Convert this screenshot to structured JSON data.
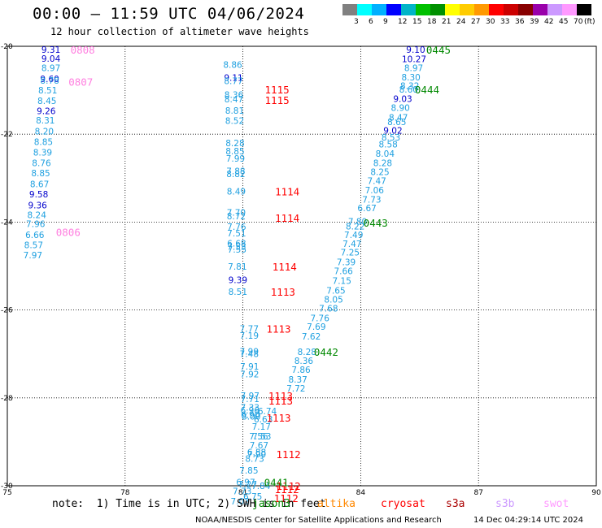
{
  "header": {
    "title": "00:00 – 11:59 UTC 04/06/2024",
    "subtitle": "12 hour collection of altimeter wave heights"
  },
  "colorbar": {
    "colors": [
      "#808080",
      "#00ffff",
      "#00b0ff",
      "#0000ff",
      "#00b4c8",
      "#00c000",
      "#009000",
      "#ffff00",
      "#ffcc00",
      "#ff9900",
      "#ff0000",
      "#cc0000",
      "#880000",
      "#9900aa",
      "#cc99ff",
      "#ff99ff",
      "#000000"
    ],
    "labels": [
      "3",
      "6",
      "9",
      "12",
      "15",
      "18",
      "21",
      "24",
      "27",
      "30",
      "33",
      "36",
      "39",
      "42",
      "45",
      "70"
    ],
    "unit": "(ft)"
  },
  "footer": {
    "note": "note:  1) Time is in UTC; 2) SWH is in feet",
    "legend": [
      {
        "name": "jason3",
        "color": "#008800"
      },
      {
        "name": "altika",
        "color": "#ff8800"
      },
      {
        "name": "cryosat",
        "color": "#ff0000"
      },
      {
        "name": "s3a",
        "color": "#aa0000"
      },
      {
        "name": "s3b",
        "color": "#cc99ff"
      },
      {
        "name": "swot",
        "color": "#ff99ff"
      }
    ],
    "credit": "NOAA/NESDIS Center for Satellite Applications and Research",
    "stamp": "14 Dec 04:29:14 UTC 2024"
  },
  "chart_data": {
    "type": "scatter",
    "xlim": [
      75,
      90
    ],
    "ylim": [
      -30,
      -20
    ],
    "x_ticks": [
      "75",
      "78",
      "81",
      "84",
      "87",
      "90"
    ],
    "y_ticks": [
      "-20",
      "-22",
      "-24",
      "-26",
      "-28",
      "-30"
    ],
    "grid": true,
    "colors": {
      "cyan": "#1fa0e0",
      "blue": "#0000cc",
      "red": "#ff0000",
      "green": "#008800",
      "pink": "#ff80e0"
    },
    "values": [
      {
        "x": 76.11,
        "y": -20.07,
        "text": "9.31",
        "c": "blue"
      },
      {
        "x": 76.11,
        "y": -20.28,
        "text": "9.04",
        "c": "blue"
      },
      {
        "x": 76.11,
        "y": -20.49,
        "text": "8.97",
        "c": "cyan"
      },
      {
        "x": 76.08,
        "y": -20.74,
        "text": "9.60",
        "c": "blue"
      },
      {
        "x": 76.08,
        "y": -20.78,
        "text": "8.78",
        "c": "cyan"
      },
      {
        "x": 76.03,
        "y": -21.0,
        "text": "8.51",
        "c": "cyan"
      },
      {
        "x": 76.01,
        "y": -21.24,
        "text": "8.45",
        "c": "cyan"
      },
      {
        "x": 75.99,
        "y": -21.47,
        "text": "9.26",
        "c": "blue"
      },
      {
        "x": 75.97,
        "y": -21.68,
        "text": "8.31",
        "c": "cyan"
      },
      {
        "x": 75.94,
        "y": -21.93,
        "text": "8.20",
        "c": "cyan"
      },
      {
        "x": 75.92,
        "y": -22.17,
        "text": "8.85",
        "c": "cyan"
      },
      {
        "x": 75.9,
        "y": -22.41,
        "text": "8.39",
        "c": "cyan"
      },
      {
        "x": 75.87,
        "y": -22.65,
        "text": "8.76",
        "c": "cyan"
      },
      {
        "x": 75.85,
        "y": -22.88,
        "text": "8.85",
        "c": "cyan"
      },
      {
        "x": 75.82,
        "y": -23.13,
        "text": "8.67",
        "c": "cyan"
      },
      {
        "x": 75.8,
        "y": -23.36,
        "text": "9.58",
        "c": "blue"
      },
      {
        "x": 75.77,
        "y": -23.61,
        "text": "9.36",
        "c": "blue"
      },
      {
        "x": 75.75,
        "y": -23.84,
        "text": "8.24",
        "c": "cyan"
      },
      {
        "x": 75.72,
        "y": -24.04,
        "text": "7.96",
        "c": "cyan"
      },
      {
        "x": 75.7,
        "y": -24.29,
        "text": "6.66",
        "c": "cyan"
      },
      {
        "x": 75.67,
        "y": -24.52,
        "text": "8.57",
        "c": "cyan"
      },
      {
        "x": 75.65,
        "y": -24.75,
        "text": "7.97",
        "c": "cyan"
      },
      {
        "x": 80.74,
        "y": -20.42,
        "text": "8.86",
        "c": "cyan"
      },
      {
        "x": 80.76,
        "y": -20.71,
        "text": "9.11",
        "c": "blue"
      },
      {
        "x": 80.76,
        "y": -20.79,
        "text": "8.77",
        "c": "cyan"
      },
      {
        "x": 80.77,
        "y": -21.1,
        "text": "8.36",
        "c": "cyan"
      },
      {
        "x": 80.77,
        "y": -21.2,
        "text": "8.47",
        "c": "cyan"
      },
      {
        "x": 80.79,
        "y": -21.46,
        "text": "8.81",
        "c": "cyan"
      },
      {
        "x": 80.79,
        "y": -21.69,
        "text": "8.52",
        "c": "cyan"
      },
      {
        "x": 80.8,
        "y": -22.2,
        "text": "8.28",
        "c": "cyan"
      },
      {
        "x": 80.8,
        "y": -22.38,
        "text": "8.85",
        "c": "cyan"
      },
      {
        "x": 80.81,
        "y": -22.55,
        "text": "7.99",
        "c": "cyan"
      },
      {
        "x": 80.82,
        "y": -22.84,
        "text": "7.88",
        "c": "cyan"
      },
      {
        "x": 80.82,
        "y": -22.9,
        "text": "8.82",
        "c": "cyan"
      },
      {
        "x": 80.83,
        "y": -23.3,
        "text": "8.49",
        "c": "cyan"
      },
      {
        "x": 80.83,
        "y": -23.78,
        "text": "7.70",
        "c": "cyan"
      },
      {
        "x": 80.83,
        "y": -23.86,
        "text": "8.72",
        "c": "cyan"
      },
      {
        "x": 80.84,
        "y": -24.1,
        "text": "7.76",
        "c": "cyan"
      },
      {
        "x": 80.84,
        "y": -24.25,
        "text": "7.51",
        "c": "cyan"
      },
      {
        "x": 80.84,
        "y": -24.48,
        "text": "6.68",
        "c": "cyan"
      },
      {
        "x": 80.84,
        "y": -24.56,
        "text": "7.53",
        "c": "cyan"
      },
      {
        "x": 80.85,
        "y": -24.62,
        "text": "7.55",
        "c": "cyan"
      },
      {
        "x": 80.86,
        "y": -25.01,
        "text": "7.81",
        "c": "cyan"
      },
      {
        "x": 80.87,
        "y": -25.31,
        "text": "9.39",
        "c": "blue"
      },
      {
        "x": 80.87,
        "y": -25.58,
        "text": "8.51",
        "c": "cyan"
      },
      {
        "x": 81.16,
        "y": -26.42,
        "text": "7.77",
        "c": "cyan"
      },
      {
        "x": 81.16,
        "y": -26.58,
        "text": "7.19",
        "c": "cyan"
      },
      {
        "x": 81.16,
        "y": -26.94,
        "text": "7.99",
        "c": "cyan"
      },
      {
        "x": 81.16,
        "y": -27.0,
        "text": "7.48",
        "c": "cyan"
      },
      {
        "x": 81.17,
        "y": -27.28,
        "text": "7.91",
        "c": "cyan"
      },
      {
        "x": 81.17,
        "y": -27.46,
        "text": "7.92",
        "c": "cyan"
      },
      {
        "x": 81.18,
        "y": -27.95,
        "text": "7.97",
        "c": "cyan"
      },
      {
        "x": 81.18,
        "y": -28.02,
        "text": "7.71",
        "c": "cyan"
      },
      {
        "x": 81.18,
        "y": -28.22,
        "text": "7.33",
        "c": "cyan"
      },
      {
        "x": 81.18,
        "y": -28.28,
        "text": "6.96",
        "c": "cyan"
      },
      {
        "x": 81.19,
        "y": -28.38,
        "text": "6.90",
        "c": "cyan"
      },
      {
        "x": 81.21,
        "y": -28.42,
        "text": "8.00",
        "c": "cyan"
      },
      {
        "x": 81.62,
        "y": -28.3,
        "text": "6.74",
        "c": "cyan"
      },
      {
        "x": 81.52,
        "y": -28.48,
        "text": "6.63",
        "c": "cyan"
      },
      {
        "x": 81.47,
        "y": -28.65,
        "text": "7.17",
        "c": "cyan"
      },
      {
        "x": 81.4,
        "y": -28.87,
        "text": "7.56",
        "c": "cyan"
      },
      {
        "x": 81.48,
        "y": -28.87,
        "text": "7.53",
        "c": "cyan"
      },
      {
        "x": 81.41,
        "y": -29.08,
        "text": "7.67",
        "c": "cyan"
      },
      {
        "x": 81.35,
        "y": -29.23,
        "text": "6.88",
        "c": "cyan"
      },
      {
        "x": 81.35,
        "y": -29.28,
        "text": "7.90",
        "c": "cyan"
      },
      {
        "x": 81.3,
        "y": -29.38,
        "text": "8.73",
        "c": "cyan"
      },
      {
        "x": 81.15,
        "y": -29.65,
        "text": "7.85",
        "c": "cyan"
      },
      {
        "x": 81.07,
        "y": -29.92,
        "text": "6.97",
        "c": "cyan"
      },
      {
        "x": 81.12,
        "y": -29.96,
        "text": "7.27",
        "c": "cyan"
      },
      {
        "x": 81.46,
        "y": -30.0,
        "text": "7.84",
        "c": "cyan"
      },
      {
        "x": 80.98,
        "y": -30.12,
        "text": "7.73",
        "c": "cyan"
      },
      {
        "x": 81.25,
        "y": -30.24,
        "text": "6.75",
        "c": "cyan"
      },
      {
        "x": 80.93,
        "y": -30.35,
        "text": "7.03",
        "c": "cyan"
      },
      {
        "x": 85.4,
        "y": -20.07,
        "text": "9.10",
        "c": "blue"
      },
      {
        "x": 85.36,
        "y": -20.29,
        "text": "10.27",
        "c": "blue"
      },
      {
        "x": 85.35,
        "y": -20.49,
        "text": "8.97",
        "c": "cyan"
      },
      {
        "x": 85.28,
        "y": -20.7,
        "text": "8.30",
        "c": "cyan"
      },
      {
        "x": 85.25,
        "y": -20.9,
        "text": "8.32",
        "c": "cyan"
      },
      {
        "x": 85.22,
        "y": -20.98,
        "text": "8.60",
        "c": "cyan"
      },
      {
        "x": 85.07,
        "y": -21.19,
        "text": "9.03",
        "c": "blue"
      },
      {
        "x": 85.01,
        "y": -21.4,
        "text": "8.90",
        "c": "cyan"
      },
      {
        "x": 84.96,
        "y": -21.62,
        "text": "8.47",
        "c": "cyan"
      },
      {
        "x": 84.92,
        "y": -21.72,
        "text": "8.65",
        "c": "cyan"
      },
      {
        "x": 84.82,
        "y": -21.91,
        "text": "9.02",
        "c": "blue"
      },
      {
        "x": 84.77,
        "y": -22.07,
        "text": "8.53",
        "c": "cyan"
      },
      {
        "x": 84.7,
        "y": -22.23,
        "text": "8.58",
        "c": "cyan"
      },
      {
        "x": 84.62,
        "y": -22.44,
        "text": "8.04",
        "c": "cyan"
      },
      {
        "x": 84.56,
        "y": -22.65,
        "text": "8.28",
        "c": "cyan"
      },
      {
        "x": 84.49,
        "y": -22.86,
        "text": "8.25",
        "c": "cyan"
      },
      {
        "x": 84.41,
        "y": -23.06,
        "text": "7.47",
        "c": "cyan"
      },
      {
        "x": 84.35,
        "y": -23.27,
        "text": "7.06",
        "c": "cyan"
      },
      {
        "x": 84.28,
        "y": -23.48,
        "text": "7.73",
        "c": "cyan"
      },
      {
        "x": 84.16,
        "y": -23.68,
        "text": "6.67",
        "c": "cyan"
      },
      {
        "x": 83.92,
        "y": -23.98,
        "text": "7.80",
        "c": "cyan"
      },
      {
        "x": 83.86,
        "y": -24.09,
        "text": "8.22",
        "c": "cyan"
      },
      {
        "x": 83.82,
        "y": -24.29,
        "text": "7.49",
        "c": "cyan"
      },
      {
        "x": 83.78,
        "y": -24.49,
        "text": "7.47",
        "c": "cyan"
      },
      {
        "x": 83.73,
        "y": -24.69,
        "text": "7.25",
        "c": "cyan"
      },
      {
        "x": 83.63,
        "y": -24.91,
        "text": "7.39",
        "c": "cyan"
      },
      {
        "x": 83.56,
        "y": -25.11,
        "text": "7.66",
        "c": "cyan"
      },
      {
        "x": 83.52,
        "y": -25.33,
        "text": "7.15",
        "c": "cyan"
      },
      {
        "x": 83.37,
        "y": -25.55,
        "text": "7.65",
        "c": "cyan"
      },
      {
        "x": 83.31,
        "y": -25.76,
        "text": "8.05",
        "c": "cyan"
      },
      {
        "x": 83.18,
        "y": -25.96,
        "text": "7.68",
        "c": "cyan"
      },
      {
        "x": 82.96,
        "y": -26.18,
        "text": "7.76",
        "c": "cyan"
      },
      {
        "x": 82.87,
        "y": -26.38,
        "text": "7.69",
        "c": "cyan"
      },
      {
        "x": 82.74,
        "y": -26.6,
        "text": "7.62",
        "c": "cyan"
      },
      {
        "x": 82.63,
        "y": -26.95,
        "text": "8.28",
        "c": "cyan"
      },
      {
        "x": 82.55,
        "y": -27.15,
        "text": "8.36",
        "c": "cyan"
      },
      {
        "x": 82.48,
        "y": -27.36,
        "text": "7.86",
        "c": "cyan"
      },
      {
        "x": 82.4,
        "y": -27.58,
        "text": "8.37",
        "c": "cyan"
      },
      {
        "x": 82.35,
        "y": -27.78,
        "text": "7.72",
        "c": "cyan"
      }
    ],
    "annotations": [
      {
        "x": 76.92,
        "y": -20.07,
        "text": "0808",
        "c": "pink"
      },
      {
        "x": 76.87,
        "y": -20.8,
        "text": "0807",
        "c": "pink"
      },
      {
        "x": 76.55,
        "y": -24.22,
        "text": "0806",
        "c": "pink"
      },
      {
        "x": 81.87,
        "y": -20.98,
        "text": "1115",
        "c": "red"
      },
      {
        "x": 81.87,
        "y": -21.22,
        "text": "1115",
        "c": "red"
      },
      {
        "x": 82.13,
        "y": -23.3,
        "text": "1114",
        "c": "red"
      },
      {
        "x": 82.13,
        "y": -23.9,
        "text": "1114",
        "c": "red"
      },
      {
        "x": 82.06,
        "y": -25.01,
        "text": "1114",
        "c": "red"
      },
      {
        "x": 82.02,
        "y": -25.58,
        "text": "1113",
        "c": "red"
      },
      {
        "x": 81.91,
        "y": -26.42,
        "text": "1113",
        "c": "red"
      },
      {
        "x": 81.96,
        "y": -27.95,
        "text": "1113",
        "c": "red"
      },
      {
        "x": 81.96,
        "y": -28.06,
        "text": "1113",
        "c": "red"
      },
      {
        "x": 81.91,
        "y": -28.45,
        "text": "1113",
        "c": "red"
      },
      {
        "x": 82.16,
        "y": -29.28,
        "text": "1112",
        "c": "red"
      },
      {
        "x": 82.16,
        "y": -30.0,
        "text": "1112",
        "c": "red"
      },
      {
        "x": 82.12,
        "y": -30.07,
        "text": "1112",
        "c": "red"
      },
      {
        "x": 82.1,
        "y": -30.28,
        "text": "1112",
        "c": "red"
      },
      {
        "x": 85.98,
        "y": -20.07,
        "text": "0445",
        "c": "green"
      },
      {
        "x": 85.69,
        "y": -20.98,
        "text": "0444",
        "c": "green"
      },
      {
        "x": 84.38,
        "y": -24.01,
        "text": "0443",
        "c": "green"
      },
      {
        "x": 83.12,
        "y": -26.95,
        "text": "0442",
        "c": "green"
      },
      {
        "x": 81.85,
        "y": -29.92,
        "text": "0441",
        "c": "green"
      }
    ]
  }
}
